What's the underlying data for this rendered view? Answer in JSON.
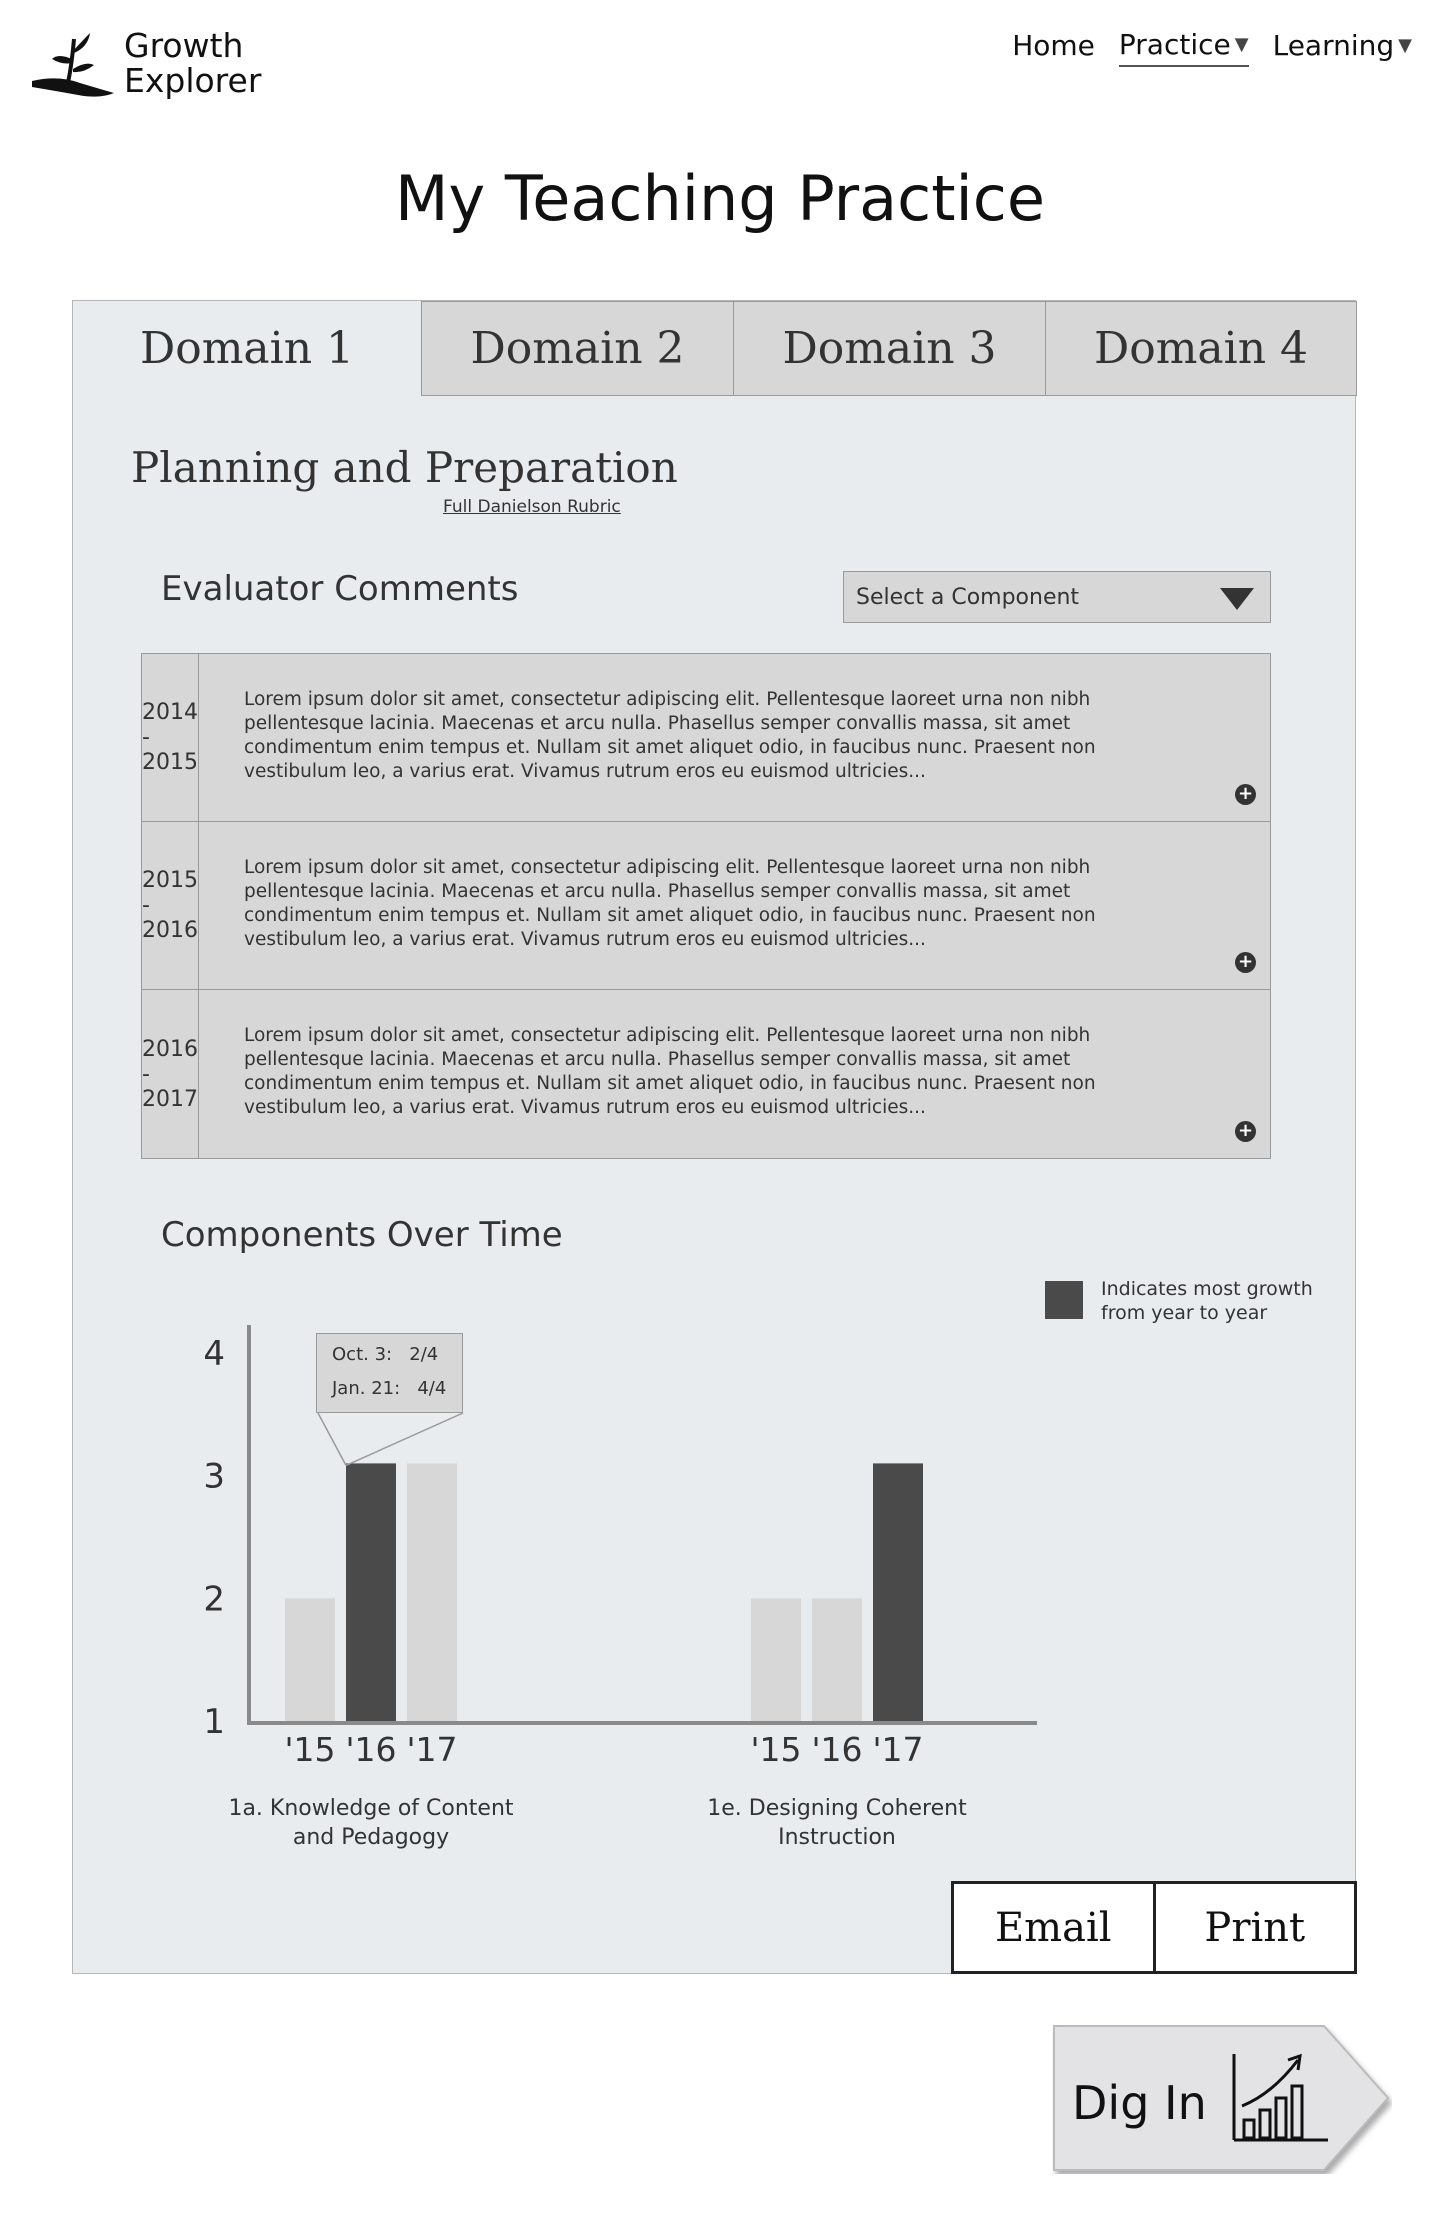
{
  "app": {
    "name": "Growth Explorer"
  },
  "nav": {
    "home": "Home",
    "practice": "Practice",
    "learning": "Learning"
  },
  "page_title": "My Teaching Practice",
  "tabs": [
    "Domain 1",
    "Domain 2",
    "Domain 3",
    "Domain 4"
  ],
  "active_tab": "Domain 1",
  "domain": {
    "heading": "Planning and Preparation",
    "rubric_link": "Full Danielson Rubric"
  },
  "comments": {
    "title": "Evaluator Comments",
    "select_placeholder": "Select a Component",
    "rows": [
      {
        "year": "2014 - 2015",
        "text": "Lorem ipsum dolor sit amet, consectetur adipiscing elit. Pellentesque laoreet urna non nibh pellentesque lacinia. Maecenas et arcu nulla. Phasellus semper convallis massa, sit amet condimentum enim tempus et. Nullam sit amet aliquet odio, in faucibus nunc. Praesent non vestibulum leo, a varius erat. Vivamus rutrum eros eu euismod ultricies..."
      },
      {
        "year": "2015 - 2016",
        "text": "Lorem ipsum dolor sit amet, consectetur adipiscing elit. Pellentesque laoreet urna non nibh pellentesque lacinia. Maecenas et arcu nulla. Phasellus semper convallis massa, sit amet condimentum enim tempus et. Nullam sit amet aliquet odio, in faucibus nunc. Praesent non vestibulum leo, a varius erat. Vivamus rutrum eros eu euismod ultricies..."
      },
      {
        "year": "2016 - 2017",
        "text": "Lorem ipsum dolor sit amet, consectetur adipiscing elit. Pellentesque laoreet urna non nibh pellentesque lacinia. Maecenas et arcu nulla. Phasellus semper convallis massa, sit amet condimentum enim tempus et. Nullam sit amet aliquet odio, in faucibus nunc. Praesent non vestibulum leo, a varius erat. Vivamus rutrum eros eu euismod ultricies..."
      }
    ]
  },
  "chart_section": {
    "title": "Components Over Time"
  },
  "legend": {
    "text": "Indicates most growth from year to year",
    "color": "#4a4a4a"
  },
  "tooltip": {
    "line1_label": "Oct. 3:",
    "line1_value": "2/4",
    "line2_label": "Jan. 21:",
    "line2_value": "4/4"
  },
  "chart_data": {
    "type": "bar",
    "ylim": [
      1,
      4
    ],
    "yticks": [
      1,
      2,
      3,
      4
    ],
    "groups": [
      {
        "label_line1": "1a. Knowledge of Content",
        "label_line2": "and Pedagogy",
        "categories": [
          "'15",
          "'16",
          "'17"
        ],
        "values": [
          2,
          3.1,
          3.1
        ],
        "highlight": [
          false,
          true,
          false
        ]
      },
      {
        "label_line1": "1e. Designing Coherent",
        "label_line2": "Instruction",
        "categories": [
          "'15",
          "'16",
          "'17"
        ],
        "values": [
          2,
          2,
          3.1
        ],
        "highlight": [
          false,
          false,
          true
        ]
      }
    ],
    "colors": {
      "normal": "#d7d7d7",
      "highlight": "#4a4a4a",
      "axis": "#8a8a8a",
      "text": "#333333"
    }
  },
  "buttons": {
    "email": "Email",
    "print": "Print",
    "dig_in": "Dig In"
  }
}
